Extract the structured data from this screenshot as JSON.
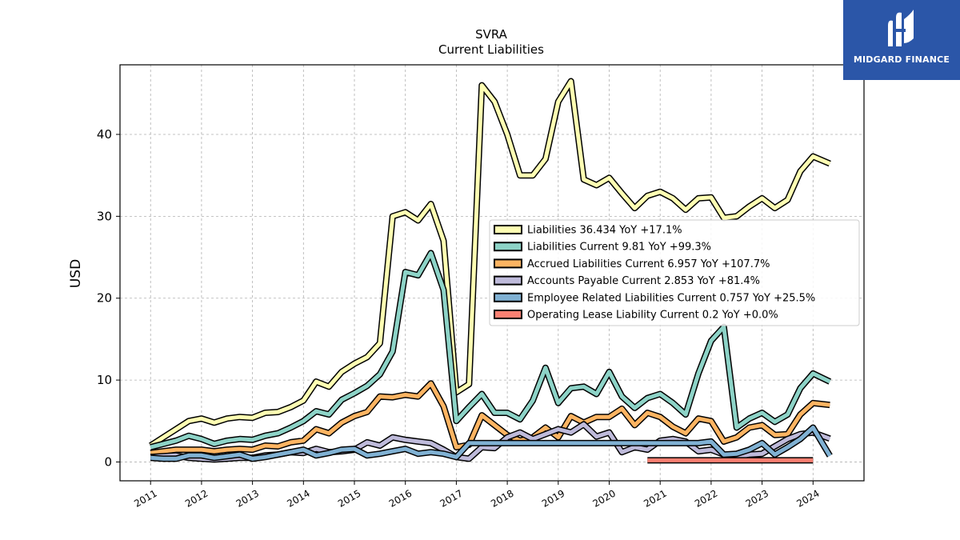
{
  "logo": {
    "text": "MIDGARD FINANCE"
  },
  "chart_data": {
    "type": "line",
    "title": "SVRA",
    "subtitle": "Current  Liabilities",
    "xlabel": "",
    "ylabel": "USD",
    "xlim": [
      2010.4,
      2025.0
    ],
    "ylim": [
      -2.3,
      48.5
    ],
    "xticks": [
      "2011",
      "2012",
      "2013",
      "2014",
      "2015",
      "2016",
      "2017",
      "2018",
      "2019",
      "2020",
      "2021",
      "2022",
      "2023",
      "2024"
    ],
    "yticks": [
      0,
      10,
      20,
      30,
      40
    ],
    "grid": true,
    "legend_position": "center-right",
    "series": [
      {
        "name": "Liabilities",
        "legend_label": "Liabilities  36.434 YoY +17.1%",
        "color": "#ffffb3",
        "points": [
          [
            2011.0,
            2.0
          ],
          [
            2011.25,
            3.0
          ],
          [
            2011.5,
            4.0
          ],
          [
            2011.75,
            5.0
          ],
          [
            2012.0,
            5.3
          ],
          [
            2012.25,
            4.8
          ],
          [
            2012.5,
            5.3
          ],
          [
            2012.75,
            5.5
          ],
          [
            2013.0,
            5.4
          ],
          [
            2013.25,
            6.0
          ],
          [
            2013.5,
            6.1
          ],
          [
            2013.75,
            6.7
          ],
          [
            2014.0,
            7.5
          ],
          [
            2014.25,
            9.8
          ],
          [
            2014.5,
            9.2
          ],
          [
            2014.75,
            11.0
          ],
          [
            2015.0,
            12.0
          ],
          [
            2015.25,
            12.8
          ],
          [
            2015.5,
            14.5
          ],
          [
            2015.75,
            30.0
          ],
          [
            2016.0,
            30.5
          ],
          [
            2016.25,
            29.5
          ],
          [
            2016.5,
            31.5
          ],
          [
            2016.75,
            27.0
          ],
          [
            2017.0,
            8.5
          ],
          [
            2017.25,
            9.5
          ],
          [
            2017.5,
            46.0
          ],
          [
            2017.75,
            44.0
          ],
          [
            2018.0,
            40.0
          ],
          [
            2018.25,
            35.0
          ],
          [
            2018.5,
            35.0
          ],
          [
            2018.75,
            37.0
          ],
          [
            2019.0,
            44.0
          ],
          [
            2019.25,
            46.5
          ],
          [
            2019.5,
            34.5
          ],
          [
            2019.75,
            33.8
          ],
          [
            2020.0,
            34.7
          ],
          [
            2020.25,
            32.8
          ],
          [
            2020.5,
            31.0
          ],
          [
            2020.75,
            32.5
          ],
          [
            2021.0,
            33.0
          ],
          [
            2021.25,
            32.2
          ],
          [
            2021.5,
            30.8
          ],
          [
            2021.75,
            32.2
          ],
          [
            2022.0,
            32.3
          ],
          [
            2022.25,
            29.8
          ],
          [
            2022.5,
            30.0
          ],
          [
            2022.75,
            31.2
          ],
          [
            2023.0,
            32.2
          ],
          [
            2023.25,
            31.0
          ],
          [
            2023.5,
            32.0
          ],
          [
            2023.75,
            35.5
          ],
          [
            2024.0,
            37.3
          ],
          [
            2024.33,
            36.434
          ]
        ]
      },
      {
        "name": "Liabilities Current",
        "legend_label": "Liabilities Current  9.81 YoY +99.3%",
        "color": "#8dd3c7",
        "points": [
          [
            2011.0,
            1.8
          ],
          [
            2011.25,
            2.2
          ],
          [
            2011.5,
            2.6
          ],
          [
            2011.75,
            3.2
          ],
          [
            2012.0,
            2.8
          ],
          [
            2012.25,
            2.2
          ],
          [
            2012.5,
            2.6
          ],
          [
            2012.75,
            2.8
          ],
          [
            2013.0,
            2.7
          ],
          [
            2013.25,
            3.2
          ],
          [
            2013.5,
            3.5
          ],
          [
            2013.75,
            4.2
          ],
          [
            2014.0,
            5.0
          ],
          [
            2014.25,
            6.2
          ],
          [
            2014.5,
            5.8
          ],
          [
            2014.75,
            7.6
          ],
          [
            2015.0,
            8.4
          ],
          [
            2015.25,
            9.3
          ],
          [
            2015.5,
            10.7
          ],
          [
            2015.75,
            13.5
          ],
          [
            2016.0,
            23.2
          ],
          [
            2016.25,
            22.8
          ],
          [
            2016.5,
            25.5
          ],
          [
            2016.75,
            21.0
          ],
          [
            2017.0,
            5.0
          ],
          [
            2017.25,
            6.7
          ],
          [
            2017.5,
            8.3
          ],
          [
            2017.75,
            6.0
          ],
          [
            2018.0,
            6.0
          ],
          [
            2018.25,
            5.2
          ],
          [
            2018.5,
            7.5
          ],
          [
            2018.75,
            11.5
          ],
          [
            2019.0,
            7.2
          ],
          [
            2019.25,
            9.0
          ],
          [
            2019.5,
            9.2
          ],
          [
            2019.75,
            8.3
          ],
          [
            2020.0,
            11.0
          ],
          [
            2020.25,
            8.0
          ],
          [
            2020.5,
            6.6
          ],
          [
            2020.75,
            7.8
          ],
          [
            2021.0,
            8.3
          ],
          [
            2021.25,
            7.2
          ],
          [
            2021.5,
            5.8
          ],
          [
            2021.75,
            10.8
          ],
          [
            2022.0,
            14.8
          ],
          [
            2022.25,
            16.5
          ],
          [
            2022.5,
            4.2
          ],
          [
            2022.75,
            5.3
          ],
          [
            2023.0,
            6.0
          ],
          [
            2023.25,
            4.9
          ],
          [
            2023.5,
            5.8
          ],
          [
            2023.75,
            9.0
          ],
          [
            2024.0,
            10.8
          ],
          [
            2024.33,
            9.81
          ]
        ]
      },
      {
        "name": "Accrued Liabilities Current",
        "legend_label": "Accrued Liabilities Current  6.957 YoY +107.7%",
        "color": "#fdb462",
        "points": [
          [
            2011.0,
            1.1
          ],
          [
            2011.25,
            1.3
          ],
          [
            2011.5,
            1.5
          ],
          [
            2011.75,
            1.5
          ],
          [
            2012.0,
            1.5
          ],
          [
            2012.25,
            1.3
          ],
          [
            2012.5,
            1.5
          ],
          [
            2012.75,
            1.6
          ],
          [
            2013.0,
            1.5
          ],
          [
            2013.25,
            2.0
          ],
          [
            2013.5,
            1.9
          ],
          [
            2013.75,
            2.4
          ],
          [
            2014.0,
            2.6
          ],
          [
            2014.25,
            4.0
          ],
          [
            2014.5,
            3.5
          ],
          [
            2014.75,
            4.8
          ],
          [
            2015.0,
            5.6
          ],
          [
            2015.25,
            6.1
          ],
          [
            2015.5,
            8.0
          ],
          [
            2015.75,
            7.9
          ],
          [
            2016.0,
            8.2
          ],
          [
            2016.25,
            8.0
          ],
          [
            2016.5,
            9.6
          ],
          [
            2016.75,
            6.8
          ],
          [
            2017.0,
            1.8
          ],
          [
            2017.25,
            2.1
          ],
          [
            2017.5,
            5.7
          ],
          [
            2017.75,
            4.5
          ],
          [
            2018.0,
            3.3
          ],
          [
            2018.25,
            2.6
          ],
          [
            2018.5,
            3.0
          ],
          [
            2018.75,
            4.2
          ],
          [
            2019.0,
            3.0
          ],
          [
            2019.25,
            5.6
          ],
          [
            2019.5,
            4.8
          ],
          [
            2019.75,
            5.5
          ],
          [
            2020.0,
            5.5
          ],
          [
            2020.25,
            6.5
          ],
          [
            2020.5,
            4.5
          ],
          [
            2020.75,
            6.0
          ],
          [
            2021.0,
            5.5
          ],
          [
            2021.25,
            4.3
          ],
          [
            2021.5,
            3.5
          ],
          [
            2021.75,
            5.3
          ],
          [
            2022.0,
            5.0
          ],
          [
            2022.25,
            2.5
          ],
          [
            2022.5,
            3.0
          ],
          [
            2022.75,
            4.2
          ],
          [
            2023.0,
            4.5
          ],
          [
            2023.25,
            3.3
          ],
          [
            2023.5,
            3.4
          ],
          [
            2023.75,
            5.8
          ],
          [
            2024.0,
            7.2
          ],
          [
            2024.33,
            6.957
          ]
        ]
      },
      {
        "name": "Accounts Payable Current",
        "legend_label": "Accounts Payable Current  2.853 YoY +81.4%",
        "color": "#bebada",
        "points": [
          [
            2011.0,
            0.6
          ],
          [
            2011.25,
            0.7
          ],
          [
            2011.5,
            0.8
          ],
          [
            2011.75,
            0.5
          ],
          [
            2012.0,
            0.4
          ],
          [
            2012.25,
            0.3
          ],
          [
            2012.5,
            0.4
          ],
          [
            2012.75,
            0.5
          ],
          [
            2013.0,
            0.5
          ],
          [
            2013.25,
            0.8
          ],
          [
            2013.5,
            0.9
          ],
          [
            2013.75,
            1.2
          ],
          [
            2014.0,
            1.1
          ],
          [
            2014.25,
            1.6
          ],
          [
            2014.5,
            1.2
          ],
          [
            2014.75,
            1.3
          ],
          [
            2015.0,
            1.5
          ],
          [
            2015.25,
            2.4
          ],
          [
            2015.5,
            2.0
          ],
          [
            2015.75,
            3.0
          ],
          [
            2016.0,
            2.7
          ],
          [
            2016.25,
            2.5
          ],
          [
            2016.5,
            2.3
          ],
          [
            2016.75,
            1.5
          ],
          [
            2017.0,
            0.6
          ],
          [
            2017.25,
            0.4
          ],
          [
            2017.5,
            1.8
          ],
          [
            2017.75,
            1.7
          ],
          [
            2018.0,
            3.0
          ],
          [
            2018.25,
            3.6
          ],
          [
            2018.5,
            2.8
          ],
          [
            2018.75,
            3.4
          ],
          [
            2019.0,
            4.0
          ],
          [
            2019.25,
            3.6
          ],
          [
            2019.5,
            4.6
          ],
          [
            2019.75,
            3.1
          ],
          [
            2020.0,
            3.6
          ],
          [
            2020.25,
            1.2
          ],
          [
            2020.5,
            1.8
          ],
          [
            2020.75,
            1.5
          ],
          [
            2021.0,
            2.6
          ],
          [
            2021.25,
            2.8
          ],
          [
            2021.5,
            2.5
          ],
          [
            2021.75,
            1.3
          ],
          [
            2022.0,
            1.5
          ],
          [
            2022.25,
            0.9
          ],
          [
            2022.5,
            0.6
          ],
          [
            2022.75,
            0.9
          ],
          [
            2023.0,
            1.0
          ],
          [
            2023.25,
            1.9
          ],
          [
            2023.5,
            2.8
          ],
          [
            2023.75,
            3.4
          ],
          [
            2024.0,
            3.6
          ],
          [
            2024.33,
            2.853
          ]
        ]
      },
      {
        "name": "Employee Related Liabilities Current",
        "legend_label": "Employee Related Liabilities Current  0.757 YoY +25.5%",
        "color": "#80b1d3",
        "points": [
          [
            2011.0,
            0.5
          ],
          [
            2011.25,
            0.4
          ],
          [
            2011.5,
            0.4
          ],
          [
            2011.75,
            0.8
          ],
          [
            2012.0,
            0.8
          ],
          [
            2012.25,
            0.5
          ],
          [
            2012.5,
            0.7
          ],
          [
            2012.75,
            0.9
          ],
          [
            2013.0,
            0.4
          ],
          [
            2013.25,
            0.6
          ],
          [
            2013.5,
            0.9
          ],
          [
            2013.75,
            1.2
          ],
          [
            2014.0,
            1.5
          ],
          [
            2014.25,
            0.8
          ],
          [
            2014.5,
            1.1
          ],
          [
            2014.75,
            1.5
          ],
          [
            2015.0,
            1.6
          ],
          [
            2015.25,
            0.8
          ],
          [
            2015.5,
            1.0
          ],
          [
            2015.75,
            1.3
          ],
          [
            2016.0,
            1.6
          ],
          [
            2016.25,
            1.0
          ],
          [
            2016.5,
            1.2
          ],
          [
            2016.75,
            1.0
          ],
          [
            2017.0,
            0.6
          ],
          [
            2017.25,
            2.3
          ],
          [
            2021.75,
            2.3
          ],
          [
            2022.0,
            2.5
          ],
          [
            2022.25,
            0.9
          ],
          [
            2022.5,
            1.0
          ],
          [
            2022.75,
            1.5
          ],
          [
            2023.0,
            2.3
          ],
          [
            2023.25,
            0.9
          ],
          [
            2023.5,
            1.8
          ],
          [
            2023.75,
            2.8
          ],
          [
            2024.0,
            4.2
          ],
          [
            2024.33,
            0.757
          ]
        ]
      },
      {
        "name": "Operating Lease Liability Current",
        "legend_label": "Operating Lease Liability Current  0.2 YoY +0.0%",
        "color": "#fb8072",
        "points": [
          [
            2020.75,
            0.2
          ],
          [
            2021.25,
            0.2
          ],
          [
            2021.75,
            0.2
          ],
          [
            2022.25,
            0.2
          ],
          [
            2022.75,
            0.2
          ],
          [
            2023.25,
            0.2
          ],
          [
            2023.75,
            0.2
          ],
          [
            2024.0,
            0.2
          ]
        ]
      }
    ]
  }
}
